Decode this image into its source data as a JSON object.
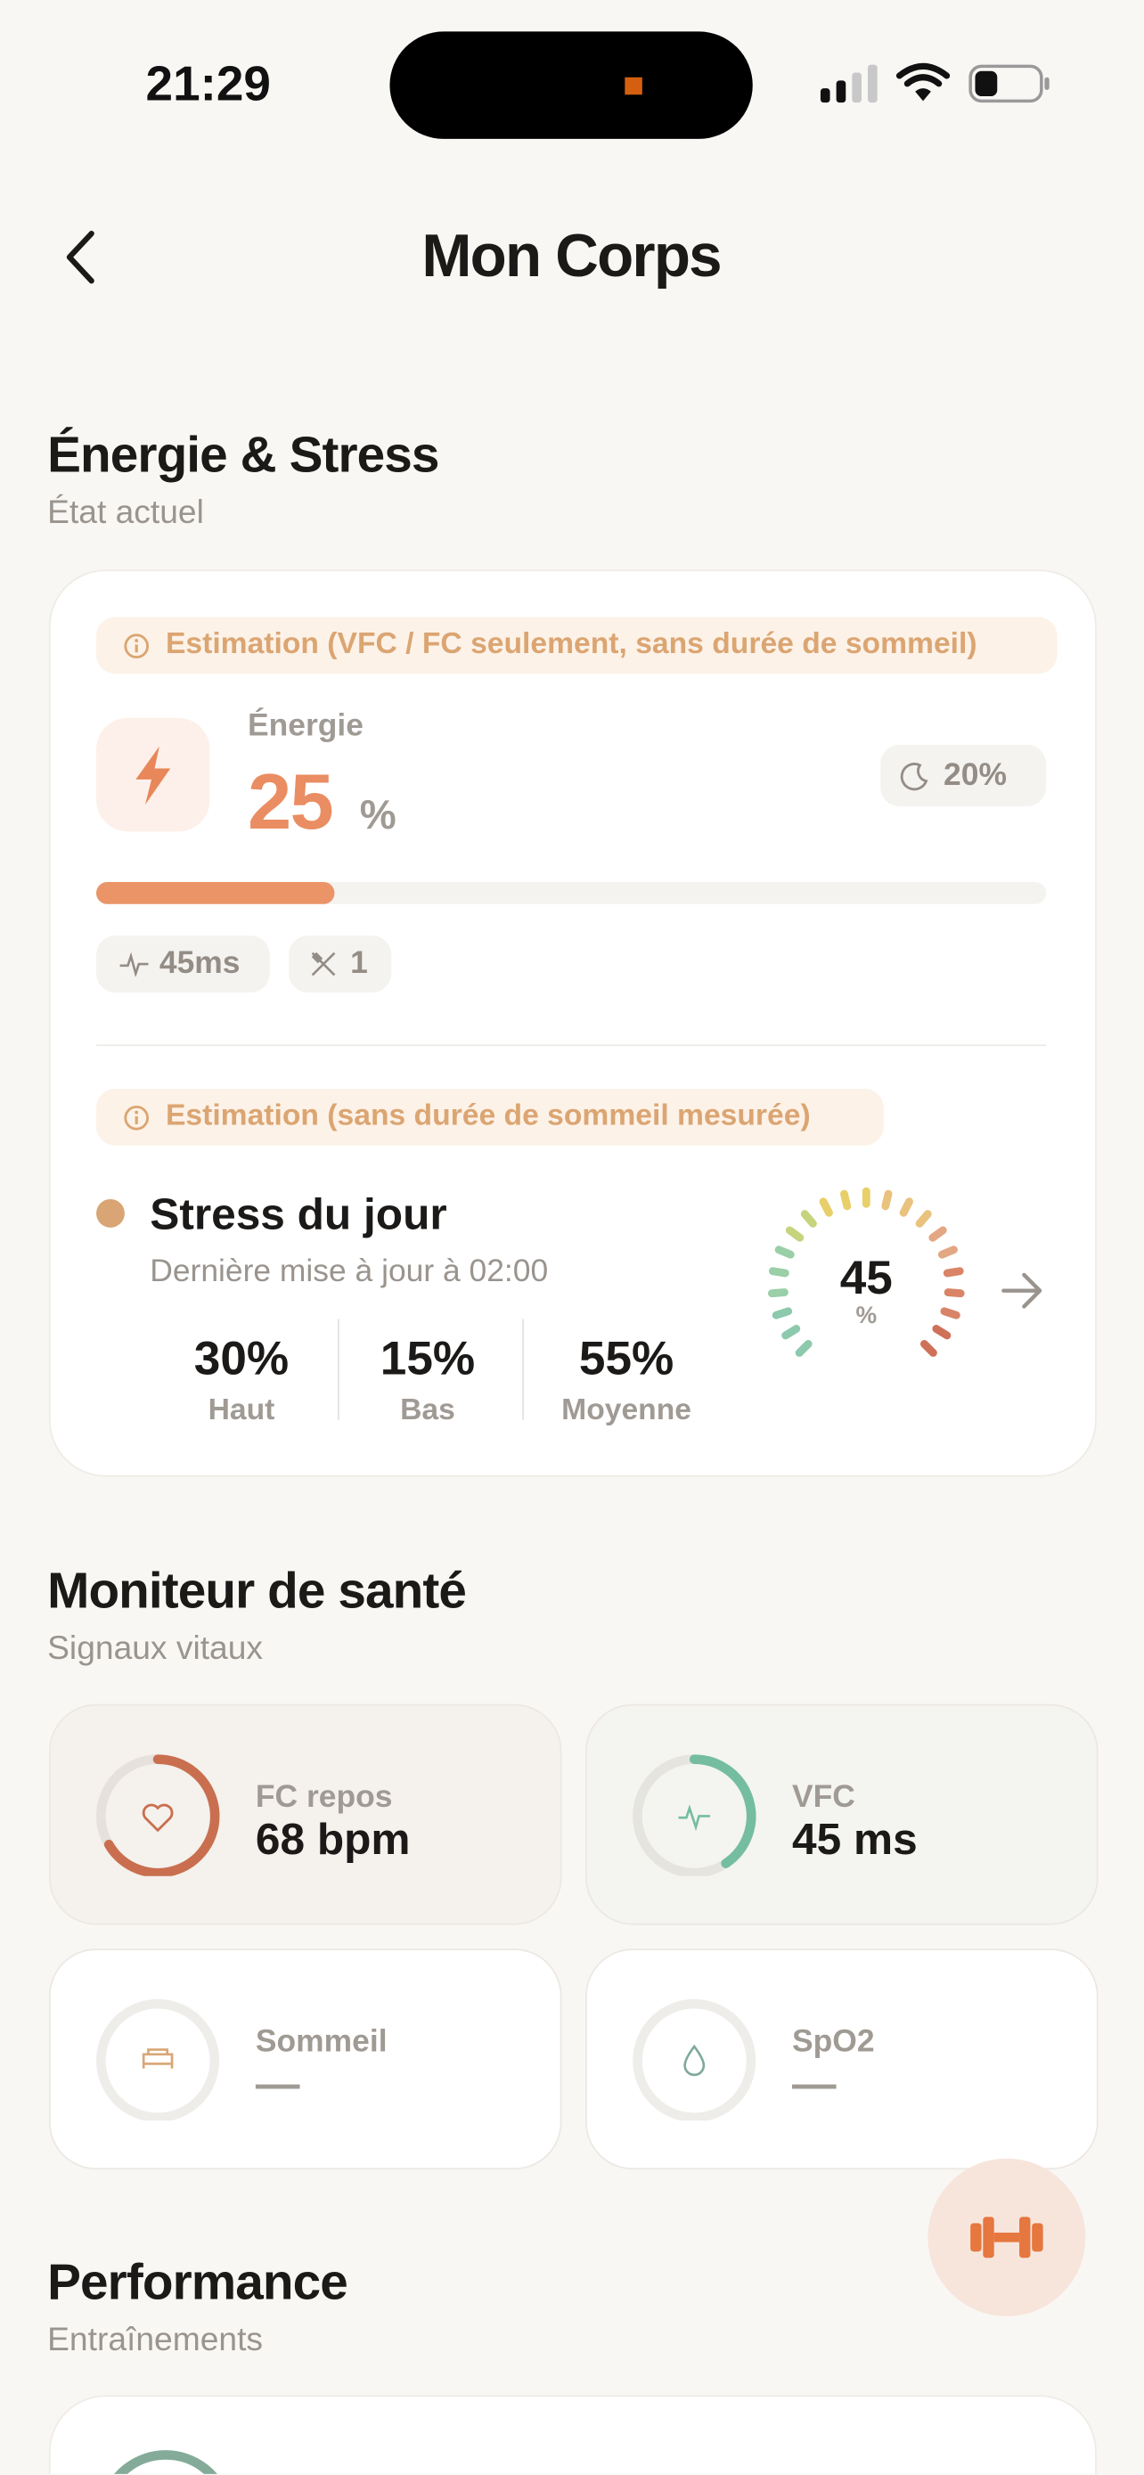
{
  "status_bar": {
    "time": "21:29"
  },
  "header": {
    "title": "Mon Corps"
  },
  "energy_section": {
    "title": "Énergie & Stress",
    "subtitle": "État actuel",
    "energy_notice": "Estimation (VFC / FC seulement, sans durée de sommeil)",
    "energy_label": "Énergie",
    "energy_value": 25,
    "energy_unit": "%",
    "sleep_chip": "20%",
    "chips": [
      "45ms",
      "1"
    ],
    "stress_notice": "Estimation (sans durée de sommeil mesurée)",
    "stress_title": "Stress du jour",
    "stress_updated": "Dernière mise à jour à 02:00",
    "stress_stats": [
      {
        "value": "30%",
        "label": "Haut"
      },
      {
        "value": "15%",
        "label": "Bas"
      },
      {
        "value": "55%",
        "label": "Moyenne"
      }
    ],
    "gauge_value": 45,
    "gauge_unit": "%"
  },
  "health_section": {
    "title": "Moniteur de santé",
    "subtitle": "Signaux vitaux",
    "tiles": [
      {
        "label": "FC repos",
        "value": "68 bpm"
      },
      {
        "label": "VFC",
        "value": "45 ms"
      },
      {
        "label": "Sommeil",
        "value": "—"
      },
      {
        "label": "SpO2",
        "value": "—"
      }
    ]
  },
  "performance_section": {
    "title": "Performance",
    "subtitle": "Entraînements"
  }
}
